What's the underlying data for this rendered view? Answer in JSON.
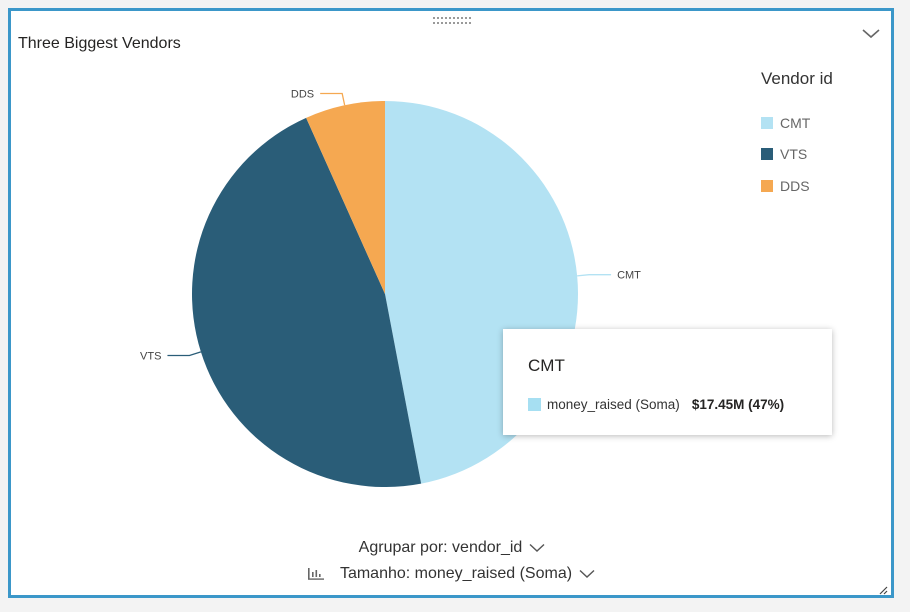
{
  "chart_data": {
    "type": "pie",
    "title": "Three Biggest Vendors",
    "slices": [
      {
        "label": "CMT",
        "value": 47,
        "color": "#b3e2f3"
      },
      {
        "label": "VTS",
        "value": 46.3,
        "color": "#2a5d78"
      },
      {
        "label": "DDS",
        "value": 6.7,
        "color": "#f5a851"
      }
    ],
    "legend": {
      "title": "Vendor id",
      "position": "top-right",
      "items": [
        "CMT",
        "VTS",
        "DDS"
      ]
    },
    "data_labels": [
      "DDS",
      "CMT",
      "VTS"
    ]
  },
  "tooltip": {
    "title": "CMT",
    "series_label": "money_raised (Soma)",
    "value": "$17.45M (47%)",
    "color": "#a6dff2"
  },
  "controls": {
    "group_by_label": "Agrupar por: vendor_id",
    "size_label": "Tamanho: money_raised (Soma)"
  },
  "icons": {
    "drag": "drag-handle-icon",
    "collapse": "chevron-down-icon",
    "size": "chart-size-icon",
    "resize": "resize-grip-icon"
  },
  "colors": {
    "panel_border": "#3b97c9"
  }
}
